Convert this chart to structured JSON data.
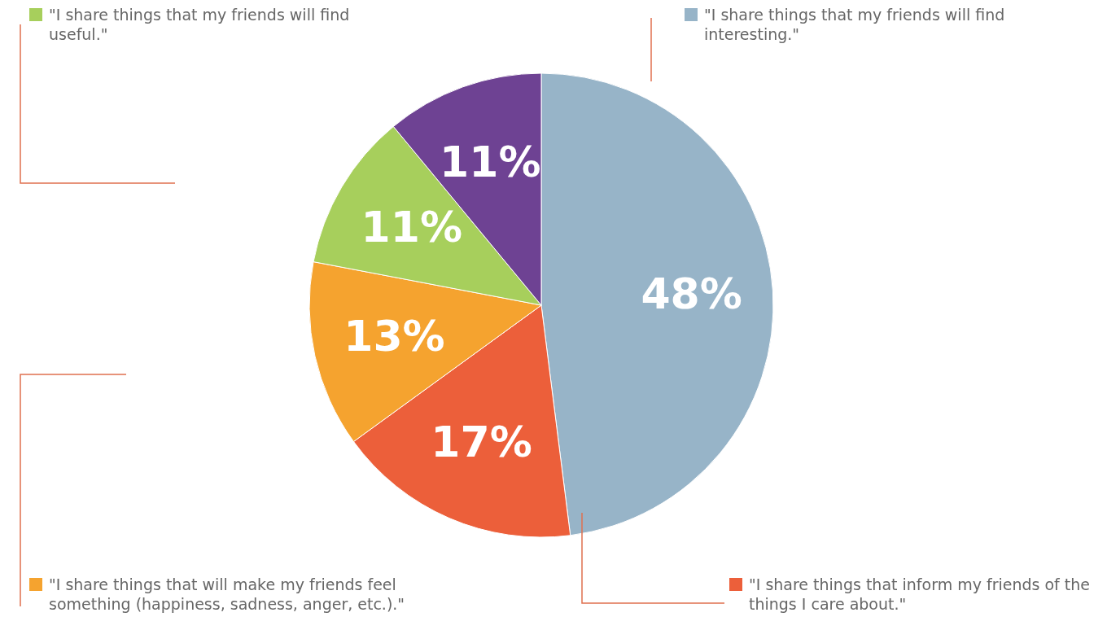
{
  "chart_data": {
    "type": "pie",
    "categories": [
      "\"I share things that my friends will find interesting.\"",
      "\"I share things that inform my friends of the things I care about.\"",
      "\"I share things that will make my friends feel something (happiness, sadness, anger, etc.).\"",
      "\"I share things that my friends will find useful.\"",
      null
    ],
    "values": [
      48,
      17,
      13,
      11,
      11
    ],
    "colors": [
      "#97b4c8",
      "#ec5f3a",
      "#f5a32f",
      "#a7cf5c",
      "#6e4293"
    ],
    "value_labels": [
      "48%",
      "17%",
      "13%",
      "11%",
      "11%"
    ],
    "legend": "bottom right"
  }
}
